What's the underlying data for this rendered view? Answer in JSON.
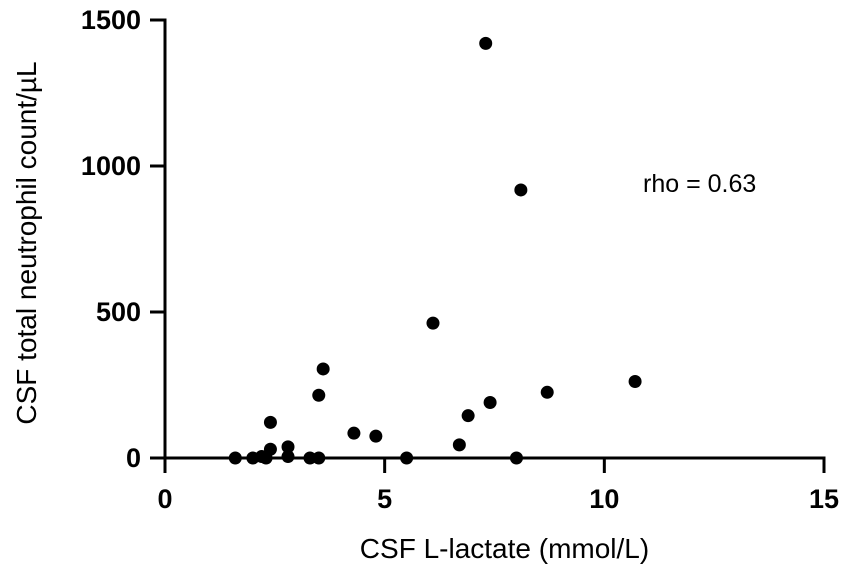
{
  "chart_data": {
    "type": "scatter",
    "title": "",
    "xlabel": "CSF L-lactate (mmol/L)",
    "ylabel": "CSF total neutrophil count/µL",
    "xlim": [
      0,
      15
    ],
    "ylim": [
      0,
      1500
    ],
    "xticks": [
      0,
      5,
      10,
      15
    ],
    "yticks": [
      0,
      500,
      1000,
      1500
    ],
    "xtick_labels": [
      "0",
      "5",
      "10",
      "15"
    ],
    "ytick_labels": [
      "0",
      "500",
      "1000",
      "1500"
    ],
    "annotation": "rho = 0.63",
    "grid": false,
    "points": [
      {
        "x": 1.6,
        "y": 0
      },
      {
        "x": 2.0,
        "y": 0
      },
      {
        "x": 2.2,
        "y": 5
      },
      {
        "x": 2.3,
        "y": 0
      },
      {
        "x": 2.4,
        "y": 30
      },
      {
        "x": 2.4,
        "y": 122
      },
      {
        "x": 2.8,
        "y": 5
      },
      {
        "x": 2.8,
        "y": 38
      },
      {
        "x": 3.3,
        "y": 0
      },
      {
        "x": 3.5,
        "y": 0
      },
      {
        "x": 3.5,
        "y": 215
      },
      {
        "x": 3.6,
        "y": 305
      },
      {
        "x": 4.3,
        "y": 85
      },
      {
        "x": 4.8,
        "y": 75
      },
      {
        "x": 5.5,
        "y": 0
      },
      {
        "x": 6.1,
        "y": 462
      },
      {
        "x": 6.7,
        "y": 45
      },
      {
        "x": 6.9,
        "y": 145
      },
      {
        "x": 7.3,
        "y": 1420
      },
      {
        "x": 7.4,
        "y": 190
      },
      {
        "x": 8.0,
        "y": 0
      },
      {
        "x": 8.1,
        "y": 918
      },
      {
        "x": 8.7,
        "y": 225
      },
      {
        "x": 10.7,
        "y": 262
      }
    ]
  }
}
